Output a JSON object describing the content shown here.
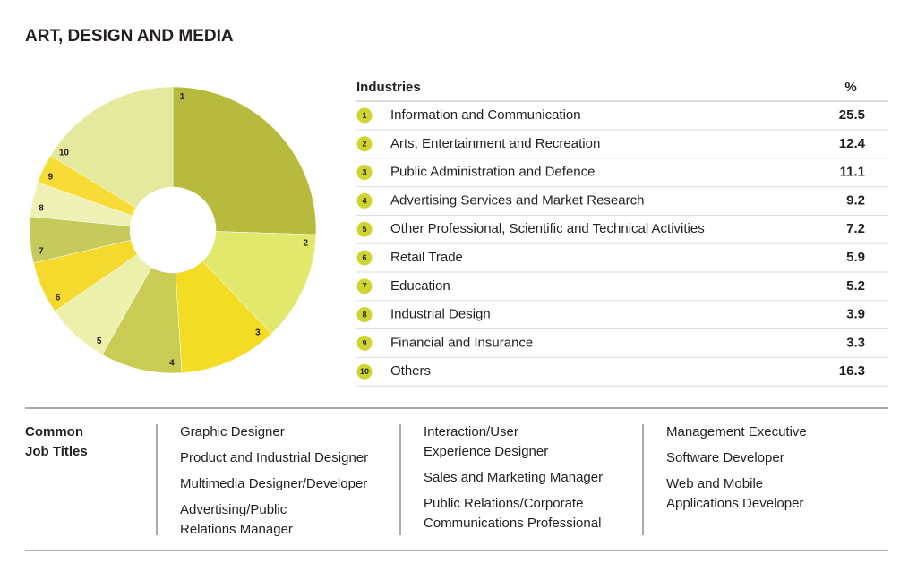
{
  "chart_data": {
    "type": "pie",
    "title": "ART, DESIGN AND MEDIA",
    "table_header": {
      "name": "Industries",
      "value": "%"
    },
    "keys": [
      "1",
      "2",
      "3",
      "4",
      "5",
      "6",
      "7",
      "8",
      "9",
      "10"
    ],
    "categories": [
      "Information and Communication",
      "Arts, Entertainment and Recreation",
      "Public Administration and Defence",
      "Advertising Services and Market Research",
      "Other Professional, Scientific and Technical Activities",
      "Retail Trade",
      "Education",
      "Industrial Design",
      "Financial and Insurance",
      "Others"
    ],
    "values": [
      25.5,
      12.4,
      11.1,
      9.2,
      7.2,
      5.9,
      5.2,
      3.9,
      3.3,
      16.3
    ],
    "colors": [
      "#b7ba3c",
      "#e2e86c",
      "#f2dc24",
      "#c8cc55",
      "#edf0aa",
      "#f3da2c",
      "#c6ca5c",
      "#eef0b4",
      "#f6dc34",
      "#e4e99e"
    ],
    "donut": true
  },
  "jobs": {
    "label": [
      "Common",
      "Job Titles"
    ],
    "columns": [
      [
        [
          "Graphic Designer"
        ],
        [
          "Product and Industrial Designer"
        ],
        [
          "Multimedia Designer/Developer"
        ],
        [
          "Advertising/Public",
          "Relations Manager"
        ]
      ],
      [
        [
          "Interaction/User",
          "Experience Designer"
        ],
        [
          "Sales and Marketing Manager"
        ],
        [
          "Public Relations/Corporate",
          "Communications Professional"
        ]
      ],
      [
        [
          "Management Executive"
        ],
        [
          "Software Developer"
        ],
        [
          "Web and Mobile",
          "Applications Developer"
        ]
      ]
    ]
  }
}
